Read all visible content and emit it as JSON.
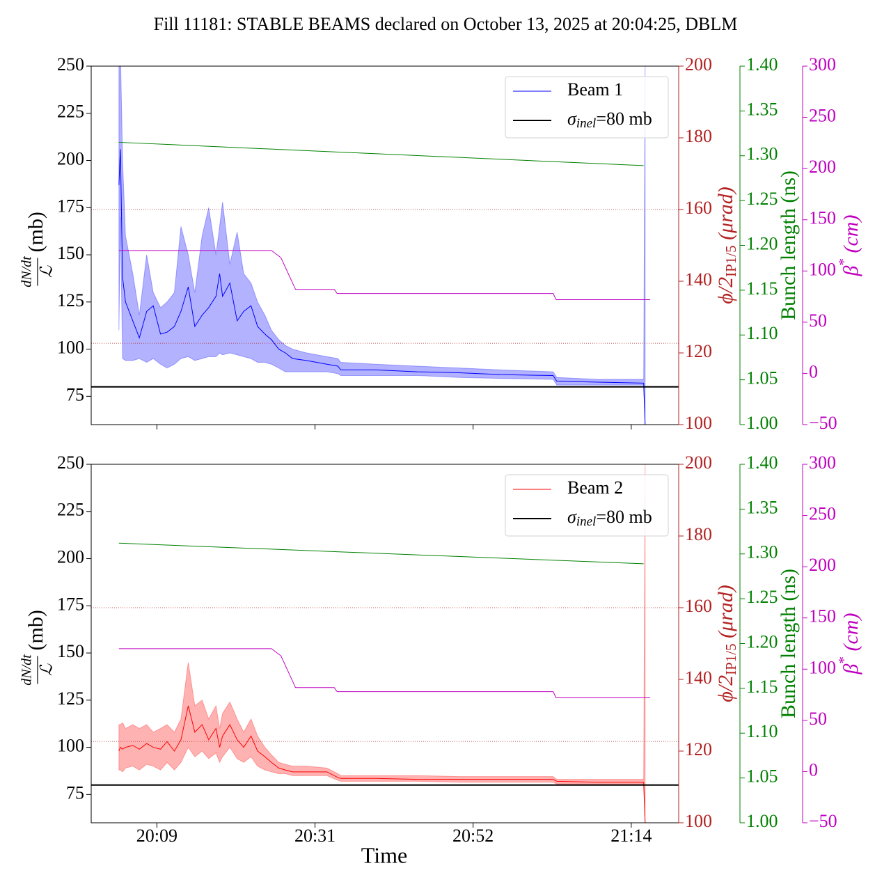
{
  "title": "Fill 11181: STABLE BEAMS declared on October 13, 2025 at 20:04:25, DBLM",
  "xlabel": "Time",
  "chart_data": [
    {
      "type": "line",
      "legend": "upper right",
      "xlim": [
        1200.5,
        1281
      ],
      "xticks": [
        1209.5,
        1231.17,
        1252.83,
        1274.5
      ],
      "ylim": [
        60,
        250
      ],
      "yticks": [
        75,
        100,
        125,
        150,
        175,
        200,
        225,
        250
      ],
      "ylabel": [
        "dN/dt",
        "ℒ",
        "(mb)"
      ],
      "y2lim": [
        100,
        200
      ],
      "y2ticks": [
        100,
        120,
        140,
        160,
        180,
        200
      ],
      "y2label": [
        "ϕ/2",
        "IP1/5",
        " (μrad)"
      ],
      "y2color": "#b22222",
      "y3lim": [
        1.0,
        1.4
      ],
      "y3ticks": [
        {
          "value": 1.0,
          "label": "1.00"
        },
        {
          "value": 1.05,
          "label": "1.05"
        },
        {
          "value": 1.1,
          "label": "1.10"
        },
        {
          "value": 1.15,
          "label": "1.15"
        },
        {
          "value": 1.2,
          "label": "1.20"
        },
        {
          "value": 1.25,
          "label": "1.25"
        },
        {
          "value": 1.3,
          "label": "1.30"
        },
        {
          "value": 1.35,
          "label": "1.35"
        },
        {
          "value": 1.4,
          "label": "1.40"
        }
      ],
      "y3label": "Bunch length (ns)",
      "y3color": "#008000",
      "y4lim": [
        -50,
        300
      ],
      "y4ticks": [
        {
          "value": -50,
          "label": "−50"
        },
        0,
        50,
        100,
        150,
        200,
        250,
        300
      ],
      "y4label": [
        "β",
        "*",
        " (cm)"
      ],
      "y4color": "#bf00bf",
      "hlines": [
        {
          "value": 80,
          "axis": "y",
          "color": "#000000",
          "style": "solid",
          "label": [
            "σ",
            "inel",
            "=80 mb"
          ]
        },
        {
          "value": 160,
          "axis": "y2",
          "color": "#b22222",
          "style": "dotted"
        },
        {
          "value": 122.7,
          "axis": "y2",
          "color": "#b22222",
          "style": "dotted"
        }
      ],
      "series": [
        {
          "name": "Beam 1",
          "color": "#0000ff",
          "x": [
            1204.3,
            1204.5,
            1204.8,
            1205.2,
            1206.2,
            1207.1,
            1208.1,
            1209.0,
            1210.0,
            1210.9,
            1211.9,
            1212.8,
            1213.8,
            1214.7,
            1215.7,
            1216.6,
            1217.6,
            1218.1,
            1218.5,
            1219.5,
            1220.5,
            1221.4,
            1222.4,
            1223.3,
            1224.3,
            1225.2,
            1226.2,
            1227.1,
            1228.1,
            1230.0,
            1232.8,
            1234.3,
            1234.7,
            1239.5,
            1245.2,
            1250.9,
            1256.6,
            1263.8,
            1264.3,
            1270.0,
            1276.2,
            1276.4
          ],
          "values": [
            187,
            206,
            138,
            125,
            115,
            106,
            120,
            123,
            108,
            109,
            112,
            120,
            133,
            112,
            118,
            122,
            128,
            140,
            128,
            135,
            115,
            120,
            123,
            112,
            108,
            105,
            100,
            98,
            95,
            94,
            92,
            91,
            89,
            89,
            88,
            87.5,
            86.5,
            86,
            83,
            82.5,
            82,
            60
          ],
          "upper": [
            260,
            260,
            200,
            160,
            140,
            118,
            150,
            130,
            122,
            125,
            130,
            165,
            150,
            130,
            160,
            175,
            150,
            165,
            178,
            145,
            162,
            140,
            135,
            125,
            118,
            110,
            105,
            102,
            100,
            98,
            96,
            95,
            93,
            92,
            91,
            90,
            89,
            88,
            85,
            84,
            84,
            250
          ],
          "lower": [
            110,
            170,
            95,
            94,
            94,
            95,
            93,
            95,
            92,
            90,
            92,
            95,
            96,
            94,
            95,
            96,
            96,
            98,
            97,
            98,
            97,
            96,
            95,
            93,
            93,
            92,
            90,
            88,
            88,
            88,
            88,
            87,
            86,
            86,
            86,
            85,
            84.5,
            84,
            81,
            81,
            81,
            60
          ]
        },
        {
          "color": "#008000",
          "axis": "y3",
          "x": [
            1204.3,
            1276.2
          ],
          "values": [
            1.315,
            1.289
          ]
        },
        {
          "color": "#bf00bf",
          "axis": "y4",
          "x": [
            1204.3,
            1225.2,
            1226.5,
            1228.5,
            1233.8,
            1234.2,
            1263.8,
            1264.2,
            1277.1
          ],
          "values": [
            120,
            120,
            113,
            82,
            82,
            78,
            78,
            72,
            72
          ]
        }
      ]
    },
    {
      "type": "line",
      "legend": "upper right",
      "xlim": [
        1200.5,
        1281
      ],
      "xticks": [
        {
          "value": 1209.5,
          "label": "20:09"
        },
        {
          "value": 1231.17,
          "label": "20:31"
        },
        {
          "value": 1252.83,
          "label": "20:52"
        },
        {
          "value": 1274.5,
          "label": "21:14"
        }
      ],
      "ylim": [
        60,
        250
      ],
      "yticks": [
        75,
        100,
        125,
        150,
        175,
        200,
        225,
        250
      ],
      "ylabel": [
        "dN/dt",
        "ℒ",
        "(mb)"
      ],
      "y2lim": [
        100,
        200
      ],
      "y2ticks": [
        100,
        120,
        140,
        160,
        180,
        200
      ],
      "y2label": [
        "ϕ/2",
        "IP1/5",
        " (μrad)"
      ],
      "y2color": "#b22222",
      "y3lim": [
        1.0,
        1.4
      ],
      "y3ticks": [
        {
          "value": 1.0,
          "label": "1.00"
        },
        {
          "value": 1.05,
          "label": "1.05"
        },
        {
          "value": 1.1,
          "label": "1.10"
        },
        {
          "value": 1.15,
          "label": "1.15"
        },
        {
          "value": 1.2,
          "label": "1.20"
        },
        {
          "value": 1.25,
          "label": "1.25"
        },
        {
          "value": 1.3,
          "label": "1.30"
        },
        {
          "value": 1.35,
          "label": "1.35"
        },
        {
          "value": 1.4,
          "label": "1.40"
        }
      ],
      "y3label": "Bunch length (ns)",
      "y3color": "#008000",
      "y4lim": [
        -50,
        300
      ],
      "y4ticks": [
        {
          "value": -50,
          "label": "−50"
        },
        0,
        50,
        100,
        150,
        200,
        250,
        300
      ],
      "y4label": [
        "β",
        "*",
        " (cm)"
      ],
      "y4color": "#bf00bf",
      "hlines": [
        {
          "value": 80,
          "axis": "y",
          "color": "#000000",
          "style": "solid",
          "label": [
            "σ",
            "inel",
            "=80 mb"
          ]
        },
        {
          "value": 160,
          "axis": "y2",
          "color": "#b22222",
          "style": "dotted"
        },
        {
          "value": 122.7,
          "axis": "y2",
          "color": "#b22222",
          "style": "dotted"
        }
      ],
      "series": [
        {
          "name": "Beam 2",
          "color": "#ff0000",
          "x": [
            1204.3,
            1204.5,
            1204.8,
            1205.2,
            1206.2,
            1207.1,
            1208.1,
            1209.0,
            1210.0,
            1210.9,
            1211.9,
            1212.8,
            1213.8,
            1214.7,
            1215.7,
            1216.6,
            1217.6,
            1218.1,
            1218.5,
            1219.5,
            1220.5,
            1221.4,
            1222.4,
            1223.3,
            1224.3,
            1225.2,
            1226.2,
            1227.1,
            1228.1,
            1230.0,
            1232.8,
            1234.3,
            1234.7,
            1239.5,
            1245.2,
            1250.9,
            1256.6,
            1263.8,
            1264.3,
            1270.0,
            1276.2,
            1276.4
          ],
          "values": [
            98,
            100,
            99,
            100,
            101,
            99,
            102,
            100,
            99,
            103,
            98,
            104,
            122,
            108,
            112,
            104,
            110,
            100,
            106,
            112,
            104,
            100,
            106,
            98,
            95,
            92,
            89,
            88,
            87,
            87,
            87,
            84,
            83.5,
            83.5,
            83,
            83,
            83,
            83,
            82,
            81.5,
            81.5,
            60
          ],
          "upper": [
            112,
            112,
            113,
            110,
            112,
            110,
            112,
            108,
            110,
            112,
            108,
            115,
            145,
            122,
            125,
            115,
            122,
            110,
            118,
            124,
            115,
            108,
            115,
            106,
            100,
            96,
            92,
            91,
            90,
            90,
            89,
            86,
            85,
            85,
            85,
            84.5,
            84.5,
            84.5,
            83,
            83,
            83,
            250
          ],
          "lower": [
            88,
            88,
            87,
            89,
            90,
            88,
            91,
            90,
            88,
            92,
            88,
            92,
            100,
            95,
            98,
            94,
            97,
            92,
            95,
            100,
            94,
            92,
            95,
            90,
            88,
            87,
            86,
            86,
            85,
            85,
            85,
            82.5,
            82,
            82,
            82,
            81.5,
            81.5,
            81.5,
            80.5,
            80.5,
            80.5,
            60
          ]
        },
        {
          "color": "#008000",
          "axis": "y3",
          "x": [
            1204.3,
            1276.2
          ],
          "values": [
            1.312,
            1.289
          ]
        },
        {
          "color": "#bf00bf",
          "axis": "y4",
          "x": [
            1204.3,
            1225.2,
            1226.5,
            1228.5,
            1233.8,
            1234.2,
            1263.8,
            1264.2,
            1277.1
          ],
          "values": [
            120,
            120,
            113,
            82,
            82,
            78,
            78,
            72,
            72
          ]
        }
      ]
    }
  ]
}
